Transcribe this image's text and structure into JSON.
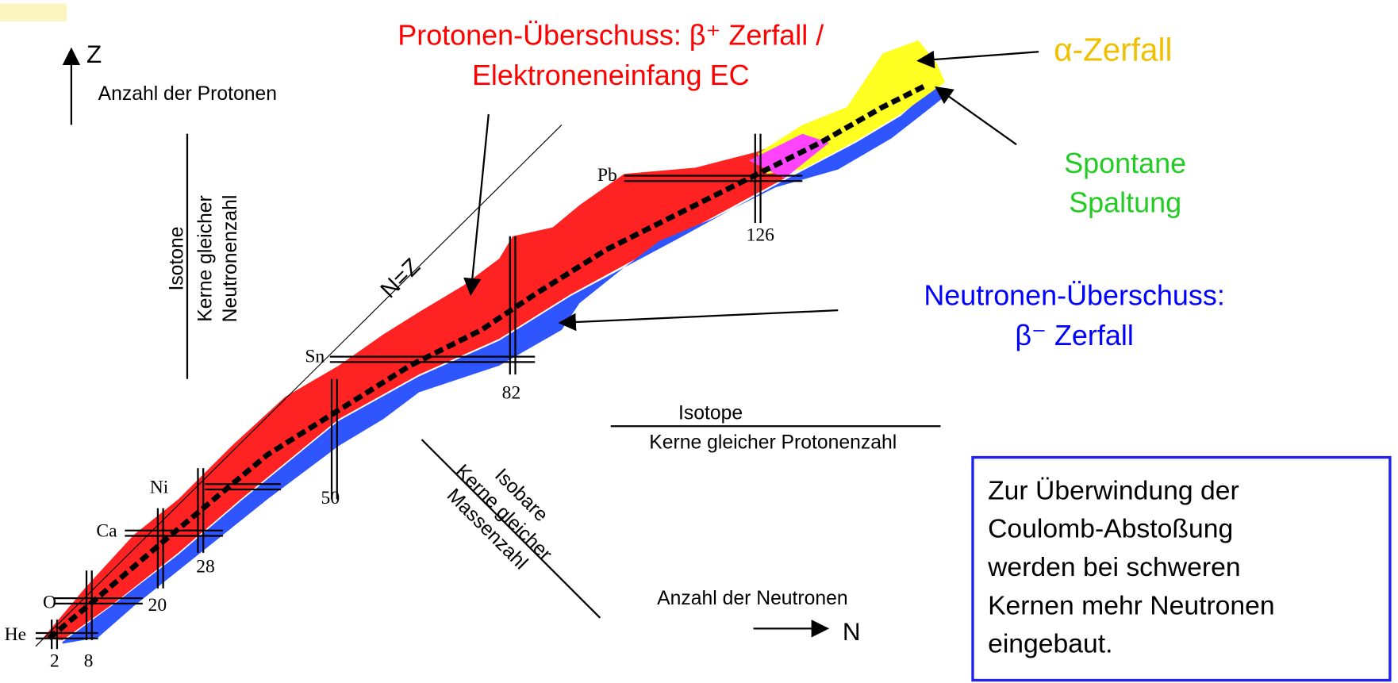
{
  "axes": {
    "z_symbol": "Z",
    "z_label": "Anzahl der Protonen",
    "n_label": "Anzahl der Neutronen",
    "n_symbol": "N"
  },
  "isotone": {
    "title": "Isotone",
    "line1": "Kerne gleicher",
    "line2": "Neutronenzahl"
  },
  "isotope": {
    "title": "Isotope",
    "line1": "Kerne gleicher Protonenzahl"
  },
  "isobare": {
    "title": "Isobare",
    "line1": "Kerne gleicher",
    "line2": "Massenzahl"
  },
  "nz_label": "N=Z",
  "elements": [
    "He",
    "O",
    "Ca",
    "Ni",
    "Sn",
    "Pb"
  ],
  "magic_numbers": [
    2,
    8,
    20,
    28,
    50,
    82,
    126
  ],
  "annotations": {
    "proton_excess": [
      "Protonen-Überschuss:   β⁺ Zerfall /",
      "Elektroneneinfang EC"
    ],
    "alpha": "α-Zerfall",
    "fission": [
      "Spontane",
      "Spaltung"
    ],
    "neutron_excess": [
      "Neutronen-Überschuss:",
      "β⁻ Zerfall"
    ]
  },
  "note": [
    "Zur Überwindung der",
    "Coulomb-Abstoßung",
    "werden bei schweren",
    "Kernen mehr Neutronen",
    "eingebaut."
  ]
}
